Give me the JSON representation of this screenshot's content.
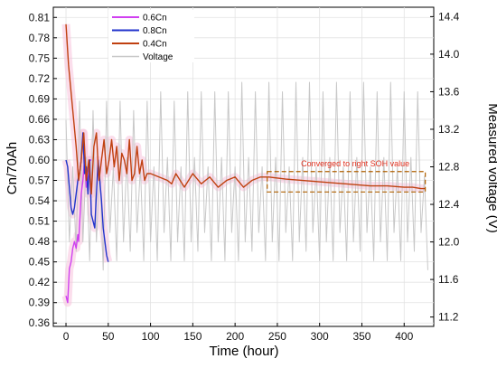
{
  "chart_data": {
    "type": "line",
    "xlabel": "Time (hour)",
    "ylabel": "Cn/70Ah",
    "y2label": "Measured voltage (V)",
    "xlim": [
      -15,
      435
    ],
    "ylim": [
      0.355,
      0.825
    ],
    "y2lim": [
      11.1,
      14.5
    ],
    "xticks": [
      0,
      50,
      100,
      150,
      200,
      250,
      300,
      350,
      400
    ],
    "yticks": [
      0.36,
      0.39,
      0.42,
      0.45,
      0.48,
      0.51,
      0.54,
      0.57,
      0.6,
      0.63,
      0.66,
      0.69,
      0.72,
      0.75,
      0.78,
      0.81
    ],
    "y2ticks": [
      11.2,
      11.6,
      12.0,
      12.4,
      12.8,
      13.2,
      13.6,
      14.0,
      14.4
    ],
    "grid": true,
    "legend_position": "top-left",
    "annotation": {
      "text": "Converged to right SOH value",
      "x_range": [
        238,
        425
      ],
      "y_range": [
        0.553,
        0.583
      ]
    },
    "series": [
      {
        "name": "0.6Cn",
        "color": "#d040f0",
        "x": [
          0,
          2,
          4,
          6,
          8,
          10,
          12,
          14,
          15,
          18,
          20,
          22,
          24,
          26,
          28,
          30
        ],
        "y": [
          0.4,
          0.39,
          0.44,
          0.45,
          0.47,
          0.48,
          0.47,
          0.49,
          0.48,
          0.55,
          0.57,
          0.6,
          0.56,
          0.57,
          0.6,
          0.6
        ]
      },
      {
        "name": "0.8Cn",
        "color": "#2233cc",
        "x": [
          0,
          2,
          4,
          6,
          8,
          10,
          12,
          14,
          16,
          18,
          20,
          22,
          24,
          26,
          28,
          30,
          32,
          34,
          36,
          38,
          40,
          42,
          44,
          46,
          48,
          50
        ],
        "y": [
          0.6,
          0.59,
          0.56,
          0.53,
          0.52,
          0.53,
          0.55,
          0.57,
          0.58,
          0.6,
          0.64,
          0.58,
          0.59,
          0.55,
          0.6,
          0.52,
          0.51,
          0.5,
          0.55,
          0.6,
          0.57,
          0.54,
          0.5,
          0.48,
          0.46,
          0.45
        ]
      },
      {
        "name": "0.4Cn",
        "color": "#c04010",
        "x": [
          0,
          3,
          6,
          9,
          12,
          15,
          18,
          21,
          24,
          27,
          30,
          33,
          36,
          39,
          42,
          45,
          48,
          51,
          54,
          57,
          60,
          63,
          66,
          69,
          72,
          75,
          78,
          81,
          84,
          87,
          90,
          93,
          96,
          100,
          110,
          120,
          125,
          130,
          140,
          150,
          160,
          170,
          180,
          190,
          200,
          210,
          220,
          230,
          240,
          260,
          280,
          300,
          320,
          340,
          360,
          380,
          400,
          410,
          420,
          425
        ],
        "y": [
          0.8,
          0.74,
          0.7,
          0.66,
          0.62,
          0.57,
          0.6,
          0.64,
          0.57,
          0.6,
          0.55,
          0.62,
          0.64,
          0.57,
          0.6,
          0.63,
          0.58,
          0.6,
          0.63,
          0.59,
          0.62,
          0.57,
          0.61,
          0.6,
          0.58,
          0.63,
          0.57,
          0.58,
          0.62,
          0.58,
          0.6,
          0.57,
          0.58,
          0.58,
          0.575,
          0.57,
          0.565,
          0.58,
          0.56,
          0.58,
          0.565,
          0.575,
          0.56,
          0.57,
          0.575,
          0.56,
          0.57,
          0.575,
          0.575,
          0.572,
          0.57,
          0.568,
          0.566,
          0.564,
          0.562,
          0.562,
          0.56,
          0.56,
          0.558,
          0.558
        ]
      },
      {
        "name": "Voltage",
        "color": "#c8c8c8",
        "axis": "y2",
        "x": [
          0,
          4,
          8,
          12,
          16,
          20,
          24,
          28,
          32,
          36,
          40,
          44,
          48,
          52,
          56,
          60,
          64,
          68,
          72,
          76,
          80,
          84,
          88,
          92,
          96,
          100,
          104,
          108,
          112,
          116,
          120,
          124,
          128,
          132,
          136,
          140,
          144,
          148,
          152,
          156,
          160,
          164,
          168,
          172,
          176,
          180,
          184,
          188,
          192,
          196,
          200,
          204,
          208,
          212,
          216,
          220,
          224,
          228,
          232,
          236,
          240,
          244,
          248,
          252,
          256,
          260,
          264,
          268,
          272,
          276,
          280,
          284,
          288,
          292,
          296,
          300,
          304,
          308,
          312,
          316,
          320,
          324,
          328,
          332,
          336,
          340,
          344,
          348,
          352,
          356,
          360,
          364,
          368,
          372,
          376,
          380,
          384,
          388,
          392,
          396,
          400,
          404,
          408,
          412,
          416,
          420,
          424,
          428
        ],
        "y": [
          13.3,
          12.0,
          12.8,
          11.9,
          13.5,
          12.0,
          12.9,
          11.8,
          13.4,
          12.0,
          12.8,
          11.7,
          13.5,
          12.1,
          12.8,
          11.8,
          13.5,
          12.0,
          12.9,
          11.9,
          13.4,
          12.1,
          12.8,
          11.8,
          13.5,
          12.0,
          12.8,
          11.8,
          13.6,
          12.1,
          12.9,
          11.8,
          13.5,
          12.0,
          12.8,
          11.8,
          13.6,
          12.0,
          12.9,
          11.9,
          13.6,
          12.1,
          12.8,
          11.8,
          13.6,
          12.0,
          12.9,
          11.8,
          13.6,
          12.1,
          12.8,
          11.8,
          13.7,
          12.0,
          12.9,
          11.9,
          13.6,
          12.1,
          12.8,
          11.8,
          13.7,
          12.0,
          12.9,
          11.8,
          13.6,
          12.1,
          12.8,
          11.8,
          13.7,
          12.0,
          12.9,
          11.9,
          13.7,
          12.1,
          12.8,
          11.8,
          13.6,
          12.0,
          12.9,
          11.8,
          13.7,
          12.1,
          12.8,
          11.8,
          13.6,
          12.0,
          12.9,
          11.9,
          13.7,
          12.1,
          12.8,
          11.8,
          13.6,
          12.0,
          12.9,
          11.8,
          13.7,
          12.1,
          12.8,
          11.8,
          13.6,
          12.0,
          12.9,
          11.9,
          13.6,
          12.1,
          12.7,
          11.7
        ]
      }
    ]
  }
}
